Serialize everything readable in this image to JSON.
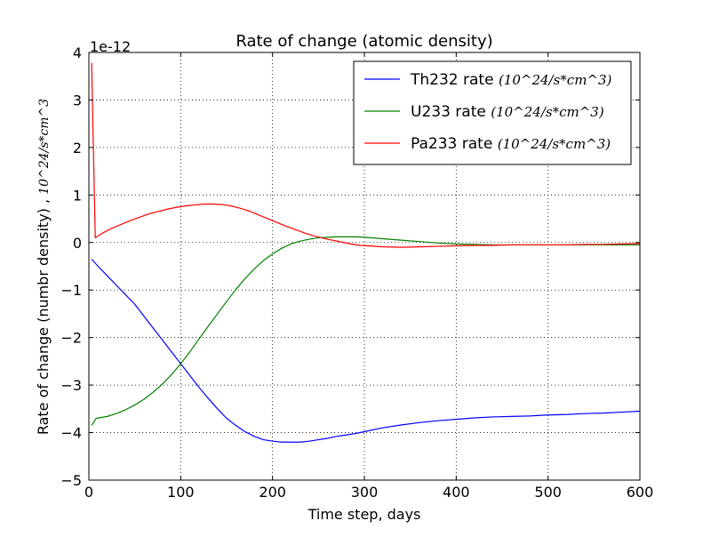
{
  "chart_data": {
    "type": "line",
    "title": "Rate of change (atomic density)",
    "xlabel": "Time step, days",
    "ylabel_main": "Rate of change (numbr density) , ",
    "ylabel_units": "10^24/s*cm^3",
    "y_offset_text": "1e-12",
    "xlim": [
      0,
      600
    ],
    "ylim": [
      -5,
      4
    ],
    "xticks": [
      0,
      100,
      200,
      300,
      400,
      500,
      600
    ],
    "yticks": [
      -5,
      -4,
      -3,
      -2,
      -1,
      0,
      1,
      2,
      3,
      4
    ],
    "grid": true,
    "legend": {
      "placement": "top-right",
      "unit_suffix": "(10^24/s*cm^3)"
    },
    "colors": {
      "Th232": "#0000ff",
      "U233": "#008000",
      "Pa233": "#ff0000"
    },
    "series": [
      {
        "name": "Th232 rate",
        "color": "#0000ff",
        "x": [
          3,
          10,
          20,
          30,
          40,
          50,
          60,
          70,
          80,
          90,
          100,
          110,
          120,
          130,
          140,
          150,
          160,
          170,
          180,
          190,
          200,
          210,
          220,
          230,
          240,
          250,
          260,
          270,
          280,
          290,
          300,
          320,
          340,
          360,
          380,
          400,
          420,
          440,
          460,
          480,
          500,
          520,
          540,
          560,
          580,
          600
        ],
        "y": [
          -0.35,
          -0.5,
          -0.7,
          -0.9,
          -1.1,
          -1.3,
          -1.55,
          -1.8,
          -2.05,
          -2.3,
          -2.55,
          -2.8,
          -3.05,
          -3.28,
          -3.5,
          -3.7,
          -3.85,
          -3.98,
          -4.08,
          -4.15,
          -4.18,
          -4.2,
          -4.2,
          -4.2,
          -4.18,
          -4.15,
          -4.12,
          -4.08,
          -4.05,
          -4.02,
          -3.98,
          -3.9,
          -3.84,
          -3.79,
          -3.75,
          -3.72,
          -3.69,
          -3.67,
          -3.66,
          -3.65,
          -3.63,
          -3.62,
          -3.6,
          -3.59,
          -3.57,
          -3.55
        ]
      },
      {
        "name": "U233 rate",
        "color": "#008000",
        "x": [
          3,
          8,
          20,
          30,
          40,
          50,
          60,
          70,
          80,
          90,
          100,
          110,
          120,
          130,
          140,
          150,
          160,
          170,
          180,
          190,
          200,
          210,
          220,
          230,
          240,
          250,
          260,
          270,
          280,
          290,
          300,
          320,
          340,
          360,
          380,
          400,
          420,
          440,
          460,
          480,
          500,
          520,
          540,
          560,
          580,
          600
        ],
        "y": [
          -3.85,
          -3.7,
          -3.66,
          -3.6,
          -3.52,
          -3.42,
          -3.3,
          -3.15,
          -2.98,
          -2.78,
          -2.55,
          -2.3,
          -2.03,
          -1.76,
          -1.5,
          -1.24,
          -0.99,
          -0.76,
          -0.56,
          -0.38,
          -0.24,
          -0.12,
          -0.03,
          0.03,
          0.07,
          0.1,
          0.11,
          0.12,
          0.12,
          0.12,
          0.11,
          0.08,
          0.05,
          0.02,
          -0.01,
          -0.03,
          -0.04,
          -0.05,
          -0.05,
          -0.05,
          -0.05,
          -0.05,
          -0.05,
          -0.05,
          -0.05,
          -0.05
        ]
      },
      {
        "name": "Pa233 rate",
        "color": "#ff0000",
        "x": [
          3,
          5,
          7,
          15,
          25,
          35,
          45,
          55,
          65,
          75,
          85,
          95,
          105,
          115,
          125,
          135,
          145,
          155,
          165,
          175,
          185,
          195,
          205,
          215,
          225,
          235,
          245,
          255,
          265,
          275,
          285,
          295,
          305,
          320,
          340,
          360,
          380,
          400,
          420,
          440,
          460,
          480,
          500,
          520,
          540,
          560,
          580,
          600
        ],
        "y": [
          3.78,
          1.9,
          0.1,
          0.2,
          0.3,
          0.38,
          0.46,
          0.53,
          0.6,
          0.65,
          0.7,
          0.74,
          0.77,
          0.79,
          0.81,
          0.81,
          0.8,
          0.77,
          0.72,
          0.66,
          0.58,
          0.5,
          0.42,
          0.34,
          0.27,
          0.2,
          0.14,
          0.09,
          0.05,
          0.01,
          -0.03,
          -0.06,
          -0.07,
          -0.09,
          -0.1,
          -0.09,
          -0.08,
          -0.07,
          -0.06,
          -0.06,
          -0.05,
          -0.05,
          -0.05,
          -0.05,
          -0.04,
          -0.04,
          -0.03,
          -0.02
        ]
      }
    ]
  }
}
